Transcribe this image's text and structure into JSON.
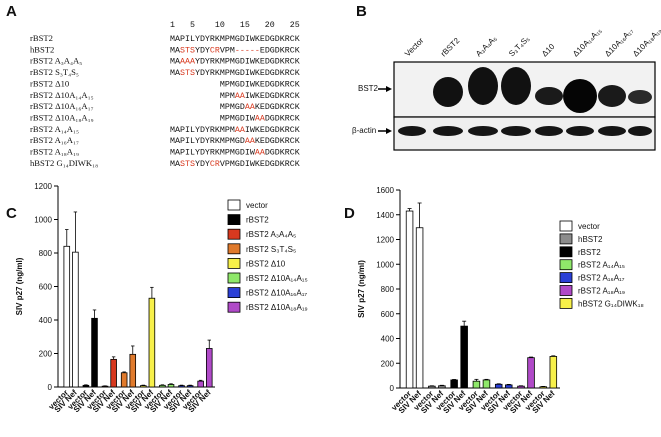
{
  "alignment": {
    "label": "A",
    "ruler": [
      1,
      5,
      10,
      15,
      20,
      25
    ],
    "highlight_color": "#d8391f",
    "rows": [
      {
        "name": "rBST2",
        "sequence": "MAPILYDYRKMPMGDIWKEDGDKRCK",
        "highlight": []
      },
      {
        "name": "hBST2",
        "sequence": "MASTSYDYCRVPM-----EDGDKRCK",
        "highlight": [
          2,
          3,
          4,
          8,
          9,
          13,
          14,
          15,
          16,
          17
        ]
      },
      {
        "name": "rBST2 A₃A₄A₅",
        "sequence": "MAAAAYDYRKMPMGDIWKEDGDKRCK",
        "highlight": [
          2,
          3,
          4
        ]
      },
      {
        "name": "rBST2 S₃T₄S₅",
        "sequence": "MASTSYDYRKMPMGDIWKEDGDKRCK",
        "highlight": [
          2,
          3,
          4
        ]
      },
      {
        "name": "rBST2 Δ10",
        "sequence": "          MPMGDIWKEDGDKRCK",
        "highlight": []
      },
      {
        "name": "rBST2 Δ10A₁₄A₁₅",
        "sequence": "          MPMAAIWKEDGDKRCK",
        "highlight": [
          13,
          14
        ]
      },
      {
        "name": "rBST2 Δ10A₁₆A₁₇",
        "sequence": "          MPMGDAAKEDGDKRCK",
        "highlight": [
          15,
          16
        ]
      },
      {
        "name": "rBST2 Δ10A₁₈A₁₉",
        "sequence": "          MPMGDIWAADGDKRCK",
        "highlight": [
          17,
          18
        ]
      },
      {
        "name": "rBST2 A₁₄A₁₅",
        "sequence": "MAPILYDYRKMPMAAIWKEDGDKRCK",
        "highlight": [
          13,
          14
        ]
      },
      {
        "name": "rBST2 A₁₆A₁₇",
        "sequence": "MAPILYDYRKMPMGDAAKEDGDKRCK",
        "highlight": [
          15,
          16
        ]
      },
      {
        "name": "rBST2 A₁₈A₁₉",
        "sequence": "MAPILYDYRKMPMGDIWAADGDKRCK",
        "highlight": [
          17,
          18
        ]
      },
      {
        "name": "hBST2 G₁₄DIWK₁₈",
        "sequence": "MASTSYDYCRVPMGDIWKEDGDKRCK",
        "highlight": [
          2,
          3,
          4,
          8,
          9
        ]
      }
    ]
  },
  "blot": {
    "label": "B",
    "lanes": [
      "Vector",
      "rBST2",
      "A₃A₄A₅",
      "S₃T₄S₅",
      "Δ10",
      "Δ10A₁₄A₁₅",
      "Δ10A₁₆A₁₇",
      "Δ10A₁₈A₁₉"
    ],
    "bands": [
      "BST2",
      "β-actin"
    ]
  },
  "chart_data": [
    {
      "type": "bar",
      "label": "C",
      "ylabel": "SIV p27 (ng/ml)",
      "categories": [
        "vector",
        "SIV Nef"
      ],
      "ylim": [
        0,
        1200
      ],
      "yticks": [
        0,
        200,
        400,
        600,
        800,
        1000,
        1200
      ],
      "series": [
        {
          "name": "vector",
          "color": "#ffffff",
          "values": [
            840,
            805
          ],
          "errors": [
            100,
            240
          ]
        },
        {
          "name": "rBST2",
          "color": "#000000",
          "values": [
            10,
            410
          ],
          "errors": [
            3,
            50
          ]
        },
        {
          "name": "rBST2 A₃A₄A₅",
          "color": "#d8391f",
          "values": [
            5,
            165
          ],
          "errors": [
            2,
            15
          ]
        },
        {
          "name": "rBST2 S₃T₄S₅",
          "color": "#e07a2c",
          "values": [
            85,
            195
          ],
          "errors": [
            5,
            50
          ]
        },
        {
          "name": "rBST2 Δ10",
          "color": "#f7f04a",
          "values": [
            8,
            530
          ],
          "errors": [
            3,
            65
          ]
        },
        {
          "name": "rBST2 Δ10A₁₄A₁₅",
          "color": "#8fe86a",
          "values": [
            10,
            15
          ],
          "errors": [
            3,
            4
          ]
        },
        {
          "name": "rBST2 Δ10A₁₆A₁₇",
          "color": "#2a3fd6",
          "values": [
            8,
            8
          ],
          "errors": [
            3,
            3
          ]
        },
        {
          "name": "rBST2 Δ10A₁₈A₁₉",
          "color": "#b04ac8",
          "values": [
            35,
            230
          ],
          "errors": [
            5,
            50
          ]
        }
      ]
    },
    {
      "type": "bar",
      "label": "D",
      "ylabel": "SIV p27 (ng/ml)",
      "categories": [
        "vector",
        "SIV Nef"
      ],
      "ylim": [
        0,
        1600
      ],
      "yticks": [
        0,
        200,
        400,
        600,
        800,
        1000,
        1200,
        1400,
        1600
      ],
      "series": [
        {
          "name": "vector",
          "color": "#ffffff",
          "values": [
            1430,
            1295
          ],
          "errors": [
            20,
            200
          ]
        },
        {
          "name": "hBST2",
          "color": "#8c8c8c",
          "values": [
            15,
            18
          ],
          "errors": [
            3,
            4
          ]
        },
        {
          "name": "rBST2",
          "color": "#000000",
          "values": [
            65,
            500
          ],
          "errors": [
            4,
            40
          ]
        },
        {
          "name": "rBST2 A₁₄A₁₅",
          "color": "#8fe86a",
          "values": [
            55,
            65
          ],
          "errors": [
            15,
            5
          ]
        },
        {
          "name": "rBST2 A₁₆A₁₇",
          "color": "#2a3fd6",
          "values": [
            30,
            25
          ],
          "errors": [
            4,
            4
          ]
        },
        {
          "name": "rBST2 A₁₈A₁₉",
          "color": "#b04ac8",
          "values": [
            15,
            245
          ],
          "errors": [
            3,
            5
          ]
        },
        {
          "name": "hBST2 G₁₄DIWK₁₈",
          "color": "#f7f04a",
          "values": [
            10,
            255
          ],
          "errors": [
            3,
            5
          ]
        }
      ]
    }
  ]
}
